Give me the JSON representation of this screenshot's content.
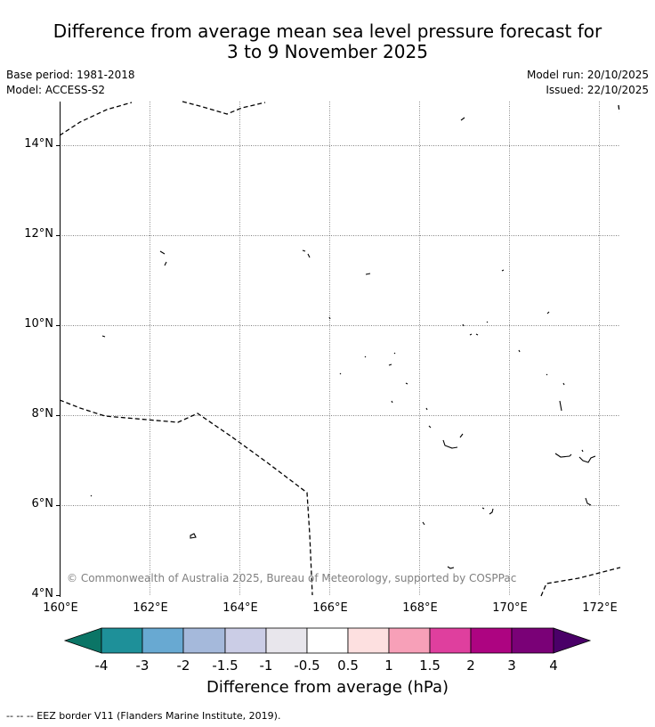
{
  "title": {
    "line1": "Difference from average mean sea level pressure forecast for",
    "line2": "3 to 9 November 2025"
  },
  "meta": {
    "base_period": "Base period: 1981-2018",
    "model": "Model: ACCESS-S2",
    "model_run": "Model run: 20/10/2025",
    "issued": "Issued: 22/10/2025"
  },
  "map": {
    "lat_labels": [
      "14°N",
      "12°N",
      "10°N",
      "8°N",
      "6°N",
      "4°N"
    ],
    "lon_labels": [
      "160°E",
      "162°E",
      "164°E",
      "166°E",
      "168°E",
      "170°E",
      "172°E"
    ],
    "copyright": "© Commonwealth of Australia 2025, Bureau of Meteorology, supported by COSPPac"
  },
  "colorbar": {
    "colors": [
      "#0b7566",
      "#1e9099",
      "#68a9d2",
      "#a5b9db",
      "#cbcde6",
      "#e8e6ec",
      "#ffffff",
      "#fde0e0",
      "#f7a0b8",
      "#df3f9e",
      "#ad0481",
      "#7a0177",
      "#4a0068"
    ],
    "ticks": [
      "-4",
      "-3",
      "-2",
      "-1.5",
      "-1",
      "-0.5",
      "0.5",
      "1",
      "1.5",
      "2",
      "3",
      "4"
    ],
    "title": "Difference from average (hPa)"
  },
  "footnote": "--  --  -- EEZ border V11 (Flanders Marine Institute, 2019)."
}
